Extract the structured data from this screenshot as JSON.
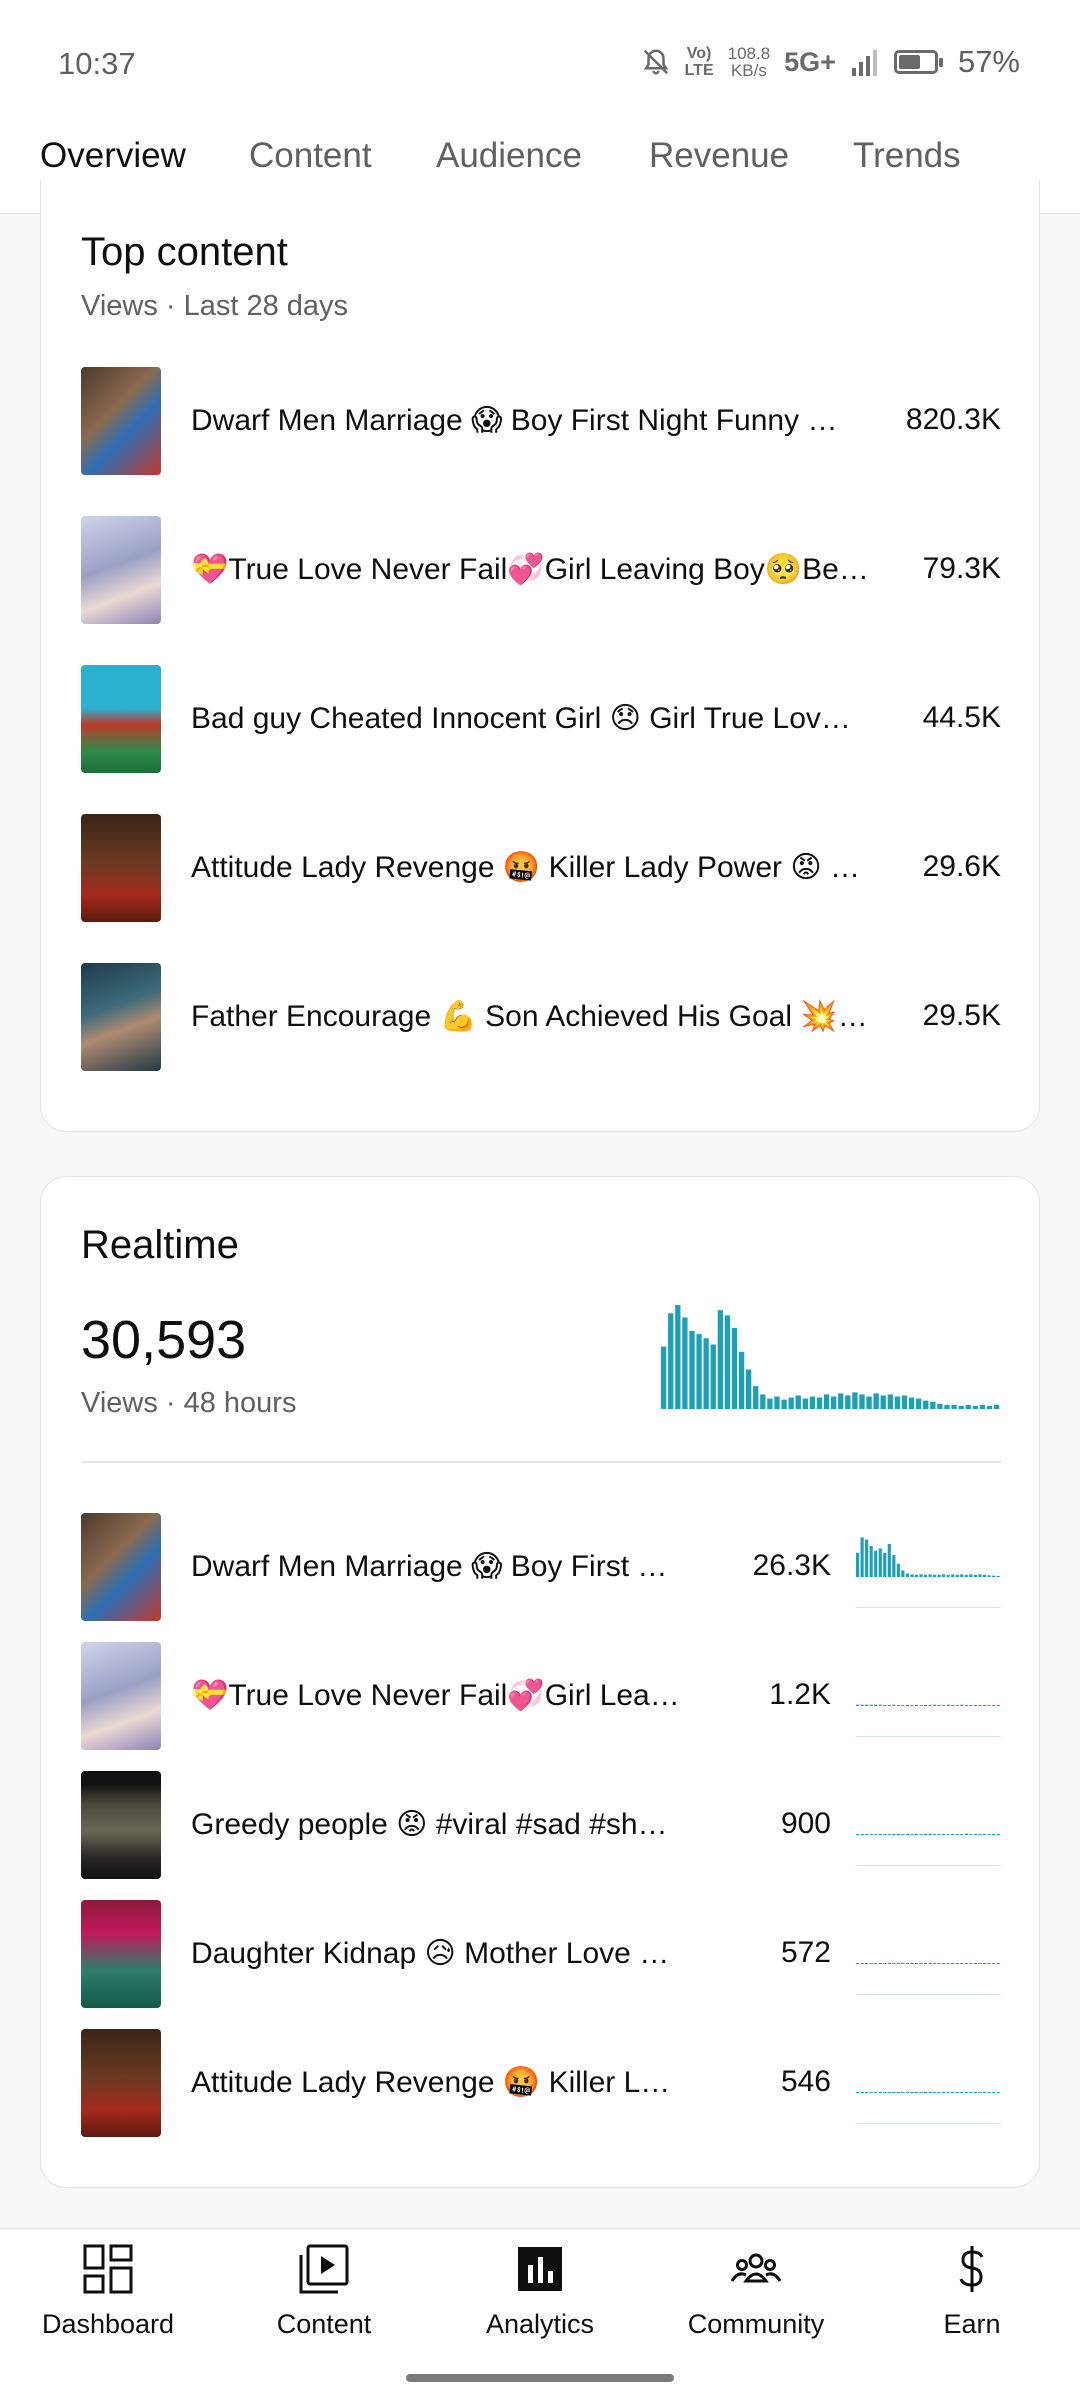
{
  "status": {
    "time": "10:37",
    "volte_top": "Vo)",
    "volte_bottom": "LTE",
    "speed_top": "108.8",
    "speed_bottom": "KB/s",
    "network": "5G+",
    "battery": "57%"
  },
  "tabs": [
    "Overview",
    "Content",
    "Audience",
    "Revenue",
    "Trends"
  ],
  "active_tab": "Overview",
  "top_content": {
    "title": "Top content",
    "subtitle": "Views · Last 28 days",
    "items": [
      {
        "title": "Dwarf Men Marriage 😱 Boy First Night Funny …",
        "value": "820.3K"
      },
      {
        "title": "💝True Love Never Fail💞Girl Leaving Boy🥺Be…",
        "value": "79.3K"
      },
      {
        "title": "Bad guy Cheated Innocent Girl 😞 Girl True Lov…",
        "value": "44.5K"
      },
      {
        "title": "Attitude Lady Revenge 🤬 Killer Lady Power 😡 …",
        "value": "29.6K"
      },
      {
        "title": "Father Encourage 💪 Son Achieved His Goal 💥…",
        "value": "29.5K"
      }
    ]
  },
  "realtime": {
    "title": "Realtime",
    "total": "30,593",
    "subtitle": "Views · 48 hours",
    "accent_color": "#1c9fb8",
    "items": [
      {
        "title": "Dwarf Men Marriage 😱 Boy First …",
        "value": "26.3K"
      },
      {
        "title": "💝True Love Never Fail💞Girl Lea…",
        "value": "1.2K"
      },
      {
        "title": "Greedy people 😡 #viral #sad #sh…",
        "value": "900"
      },
      {
        "title": "Daughter Kidnap 😥 Mother Love …",
        "value": "572"
      },
      {
        "title": "Attitude Lady Revenge 🤬 Killer L…",
        "value": "546"
      }
    ]
  },
  "bottom_nav": [
    {
      "label": "Dashboard",
      "icon": "dashboard-icon"
    },
    {
      "label": "Content",
      "icon": "content-icon"
    },
    {
      "label": "Analytics",
      "icon": "analytics-icon",
      "active": true
    },
    {
      "label": "Community",
      "icon": "community-icon"
    },
    {
      "label": "Earn",
      "icon": "earn-icon"
    }
  ]
}
